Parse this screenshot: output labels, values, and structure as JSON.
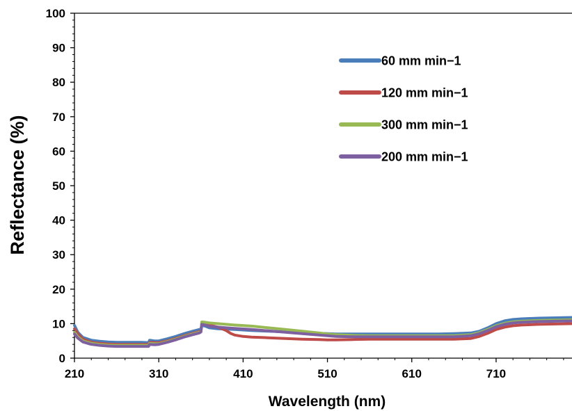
{
  "chart_data": {
    "type": "line",
    "title": "",
    "xlabel": "Wavelength (nm)",
    "ylabel": "Reflectance (%)",
    "xlim": [
      210,
      800
    ],
    "ylim": [
      0,
      100
    ],
    "x_ticks": [
      "210",
      "310",
      "410",
      "510",
      "610",
      "710"
    ],
    "y_ticks": [
      "0",
      "10",
      "20",
      "30",
      "40",
      "50",
      "60",
      "70",
      "80",
      "90",
      "100"
    ],
    "grid": false,
    "legend_position": "top-right",
    "series": [
      {
        "name": "60 mm min−1",
        "color": "#4a7ebb",
        "points": [
          [
            210,
            9.5
          ],
          [
            214,
            7.5
          ],
          [
            220,
            6.0
          ],
          [
            230,
            5.2
          ],
          [
            240,
            4.9
          ],
          [
            250,
            4.7
          ],
          [
            260,
            4.6
          ],
          [
            270,
            4.6
          ],
          [
            280,
            4.6
          ],
          [
            290,
            4.6
          ],
          [
            298,
            4.5
          ],
          [
            299,
            5.2
          ],
          [
            305,
            5.0
          ],
          [
            310,
            5.0
          ],
          [
            320,
            5.6
          ],
          [
            330,
            6.3
          ],
          [
            340,
            7.1
          ],
          [
            350,
            7.8
          ],
          [
            358,
            8.3
          ],
          [
            360,
            8.5
          ],
          [
            361,
            9.5
          ],
          [
            365,
            9.3
          ],
          [
            370,
            8.8
          ],
          [
            380,
            8.5
          ],
          [
            390,
            8.4
          ],
          [
            400,
            8.3
          ],
          [
            420,
            8.0
          ],
          [
            440,
            7.8
          ],
          [
            460,
            7.6
          ],
          [
            480,
            7.4
          ],
          [
            500,
            7.2
          ],
          [
            510,
            7.1
          ],
          [
            520,
            7.0
          ],
          [
            540,
            7.0
          ],
          [
            560,
            7.0
          ],
          [
            580,
            7.0
          ],
          [
            600,
            7.0
          ],
          [
            620,
            7.0
          ],
          [
            640,
            7.0
          ],
          [
            660,
            7.1
          ],
          [
            680,
            7.3
          ],
          [
            690,
            7.8
          ],
          [
            700,
            8.8
          ],
          [
            710,
            10.0
          ],
          [
            720,
            10.8
          ],
          [
            730,
            11.2
          ],
          [
            740,
            11.4
          ],
          [
            760,
            11.6
          ],
          [
            780,
            11.7
          ],
          [
            800,
            11.8
          ]
        ]
      },
      {
        "name": "120 mm min−1",
        "color": "#be4b48",
        "points": [
          [
            210,
            8.5
          ],
          [
            214,
            7.0
          ],
          [
            220,
            5.5
          ],
          [
            230,
            4.6
          ],
          [
            240,
            4.3
          ],
          [
            250,
            4.1
          ],
          [
            260,
            4.0
          ],
          [
            270,
            4.0
          ],
          [
            280,
            4.0
          ],
          [
            290,
            4.0
          ],
          [
            298,
            4.0
          ],
          [
            299,
            4.6
          ],
          [
            305,
            4.5
          ],
          [
            310,
            4.5
          ],
          [
            320,
            5.0
          ],
          [
            330,
            5.7
          ],
          [
            340,
            6.5
          ],
          [
            350,
            7.2
          ],
          [
            358,
            7.7
          ],
          [
            360,
            8.0
          ],
          [
            361,
            10.3
          ],
          [
            365,
            10.1
          ],
          [
            370,
            9.6
          ],
          [
            380,
            9.0
          ],
          [
            390,
            8.0
          ],
          [
            395,
            7.2
          ],
          [
            400,
            6.7
          ],
          [
            410,
            6.3
          ],
          [
            420,
            6.1
          ],
          [
            440,
            5.9
          ],
          [
            460,
            5.7
          ],
          [
            480,
            5.5
          ],
          [
            500,
            5.4
          ],
          [
            510,
            5.3
          ],
          [
            520,
            5.3
          ],
          [
            540,
            5.4
          ],
          [
            560,
            5.5
          ],
          [
            580,
            5.5
          ],
          [
            600,
            5.5
          ],
          [
            620,
            5.5
          ],
          [
            640,
            5.5
          ],
          [
            660,
            5.5
          ],
          [
            680,
            5.7
          ],
          [
            690,
            6.3
          ],
          [
            700,
            7.2
          ],
          [
            710,
            8.3
          ],
          [
            720,
            9.0
          ],
          [
            730,
            9.4
          ],
          [
            740,
            9.6
          ],
          [
            760,
            9.8
          ],
          [
            780,
            9.9
          ],
          [
            800,
            10.0
          ]
        ]
      },
      {
        "name": "300 mm min−1",
        "color": "#98b954",
        "points": [
          [
            210,
            7.5
          ],
          [
            214,
            6.2
          ],
          [
            220,
            5.0
          ],
          [
            230,
            4.3
          ],
          [
            240,
            4.0
          ],
          [
            250,
            3.8
          ],
          [
            260,
            3.7
          ],
          [
            270,
            3.7
          ],
          [
            280,
            3.7
          ],
          [
            290,
            3.7
          ],
          [
            298,
            3.7
          ],
          [
            299,
            4.3
          ],
          [
            305,
            4.2
          ],
          [
            310,
            4.2
          ],
          [
            320,
            4.8
          ],
          [
            330,
            5.5
          ],
          [
            340,
            6.3
          ],
          [
            350,
            7.0
          ],
          [
            358,
            7.5
          ],
          [
            360,
            7.8
          ],
          [
            361,
            10.5
          ],
          [
            365,
            10.4
          ],
          [
            370,
            10.2
          ],
          [
            380,
            10.0
          ],
          [
            390,
            9.8
          ],
          [
            400,
            9.6
          ],
          [
            420,
            9.3
          ],
          [
            440,
            8.8
          ],
          [
            460,
            8.3
          ],
          [
            480,
            7.8
          ],
          [
            500,
            7.3
          ],
          [
            510,
            7.0
          ],
          [
            520,
            6.8
          ],
          [
            540,
            6.6
          ],
          [
            560,
            6.5
          ],
          [
            580,
            6.5
          ],
          [
            600,
            6.5
          ],
          [
            620,
            6.5
          ],
          [
            640,
            6.5
          ],
          [
            660,
            6.5
          ],
          [
            680,
            6.8
          ],
          [
            690,
            7.4
          ],
          [
            700,
            8.3
          ],
          [
            710,
            9.4
          ],
          [
            720,
            10.1
          ],
          [
            730,
            10.5
          ],
          [
            740,
            10.7
          ],
          [
            760,
            10.9
          ],
          [
            780,
            11.0
          ],
          [
            800,
            11.1
          ]
        ]
      },
      {
        "name": "200 mm min−1",
        "color": "#7d60a0",
        "points": [
          [
            210,
            7.0
          ],
          [
            214,
            5.8
          ],
          [
            220,
            4.7
          ],
          [
            230,
            4.0
          ],
          [
            240,
            3.7
          ],
          [
            250,
            3.5
          ],
          [
            260,
            3.4
          ],
          [
            270,
            3.4
          ],
          [
            280,
            3.4
          ],
          [
            290,
            3.4
          ],
          [
            298,
            3.4
          ],
          [
            299,
            4.0
          ],
          [
            305,
            3.9
          ],
          [
            310,
            4.0
          ],
          [
            320,
            4.6
          ],
          [
            330,
            5.3
          ],
          [
            340,
            6.1
          ],
          [
            350,
            6.8
          ],
          [
            358,
            7.3
          ],
          [
            360,
            7.6
          ],
          [
            361,
            9.8
          ],
          [
            365,
            9.6
          ],
          [
            370,
            9.2
          ],
          [
            380,
            9.0
          ],
          [
            390,
            8.8
          ],
          [
            400,
            8.6
          ],
          [
            420,
            8.3
          ],
          [
            440,
            7.9
          ],
          [
            460,
            7.5
          ],
          [
            480,
            7.1
          ],
          [
            500,
            6.7
          ],
          [
            510,
            6.5
          ],
          [
            520,
            6.3
          ],
          [
            540,
            6.2
          ],
          [
            560,
            6.2
          ],
          [
            580,
            6.2
          ],
          [
            600,
            6.2
          ],
          [
            620,
            6.2
          ],
          [
            640,
            6.2
          ],
          [
            660,
            6.2
          ],
          [
            680,
            6.5
          ],
          [
            690,
            7.1
          ],
          [
            700,
            8.0
          ],
          [
            710,
            9.1
          ],
          [
            720,
            9.8
          ],
          [
            730,
            10.2
          ],
          [
            740,
            10.4
          ],
          [
            760,
            10.6
          ],
          [
            780,
            10.7
          ],
          [
            800,
            10.8
          ]
        ]
      }
    ]
  }
}
